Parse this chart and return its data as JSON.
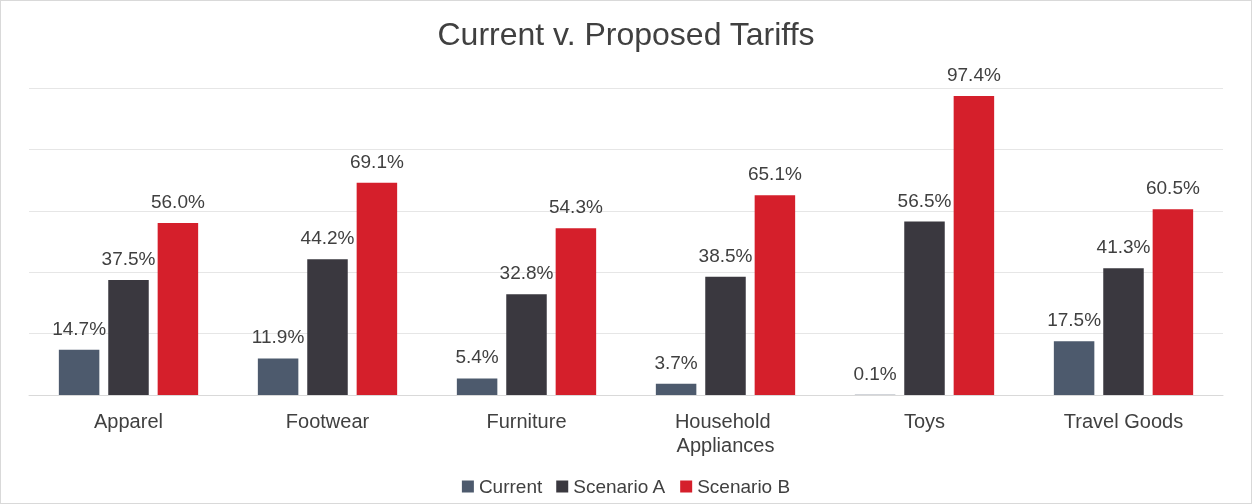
{
  "chart_data": {
    "type": "bar",
    "title": "Current v. Proposed Tariffs",
    "categories": [
      "Apparel",
      "Footwear",
      "Furniture",
      "Household Appliances",
      "Toys",
      "Travel Goods"
    ],
    "series": [
      {
        "name": "Current",
        "color": "#4d5a6d",
        "values": [
          14.7,
          11.9,
          5.4,
          3.7,
          0.1,
          17.5
        ],
        "value_labels": [
          "14.7%",
          "11.9%",
          "5.4%",
          "3.7%",
          "0.1%",
          "17.5%"
        ]
      },
      {
        "name": "Scenario A",
        "color": "#3a383f",
        "values": [
          37.5,
          44.2,
          32.8,
          38.5,
          56.5,
          41.3
        ],
        "value_labels": [
          "37.5%",
          "44.2%",
          "32.8%",
          "38.5%",
          "56.5%",
          "41.3%"
        ]
      },
      {
        "name": "Scenario B",
        "color": "#d51f2b",
        "values": [
          56.0,
          69.1,
          54.3,
          65.1,
          97.4,
          60.5
        ],
        "value_labels": [
          "56.0%",
          "69.1%",
          "54.3%",
          "65.1%",
          "97.4%",
          "60.5%"
        ]
      }
    ],
    "ylim": [
      0,
      100
    ],
    "yticks": [
      {
        "value": 0,
        "label": null
      },
      {
        "value": 20,
        "label": null
      },
      {
        "value": 40,
        "label": null
      },
      {
        "value": 60,
        "label": null
      },
      {
        "value": 80,
        "label": null
      },
      {
        "value": 100,
        "label": null
      }
    ],
    "tick_labels": "x",
    "grid": "y",
    "legend": "bottom"
  }
}
